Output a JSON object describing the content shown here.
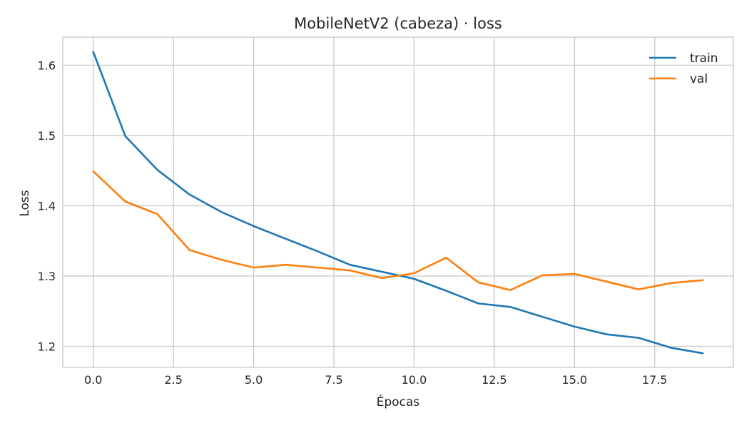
{
  "chart_data": {
    "type": "line",
    "title": "MobileNetV2 (cabeza) · loss",
    "xlabel": "Épocas",
    "ylabel": "Loss",
    "xlim": [
      -0.95,
      19.95
    ],
    "ylim": [
      1.17,
      1.64
    ],
    "xticks": [
      0.0,
      2.5,
      5.0,
      7.5,
      10.0,
      12.5,
      15.0,
      17.5
    ],
    "xtick_labels": [
      "0.0",
      "2.5",
      "5.0",
      "7.5",
      "10.0",
      "12.5",
      "15.0",
      "17.5"
    ],
    "yticks": [
      1.2,
      1.3,
      1.4,
      1.5,
      1.6
    ],
    "ytick_labels": [
      "1.2",
      "1.3",
      "1.4",
      "1.5",
      "1.6"
    ],
    "grid": true,
    "legend_position": "top-right",
    "x": [
      0,
      1,
      2,
      3,
      4,
      5,
      6,
      7,
      8,
      9,
      10,
      11,
      12,
      13,
      14,
      15,
      16,
      17,
      18,
      19
    ],
    "series": [
      {
        "name": "train",
        "color": "#1f77b4",
        "values": [
          1.619,
          1.499,
          1.451,
          1.416,
          1.391,
          1.371,
          1.353,
          1.335,
          1.316,
          1.306,
          1.296,
          1.279,
          1.261,
          1.256,
          1.242,
          1.228,
          1.217,
          1.212,
          1.198,
          1.19
        ]
      },
      {
        "name": "val",
        "color": "#ff7f0e",
        "values": [
          1.449,
          1.406,
          1.388,
          1.337,
          1.323,
          1.312,
          1.316,
          1.312,
          1.308,
          1.297,
          1.304,
          1.326,
          1.291,
          1.28,
          1.301,
          1.303,
          1.292,
          1.281,
          1.29,
          1.294
        ]
      }
    ]
  }
}
